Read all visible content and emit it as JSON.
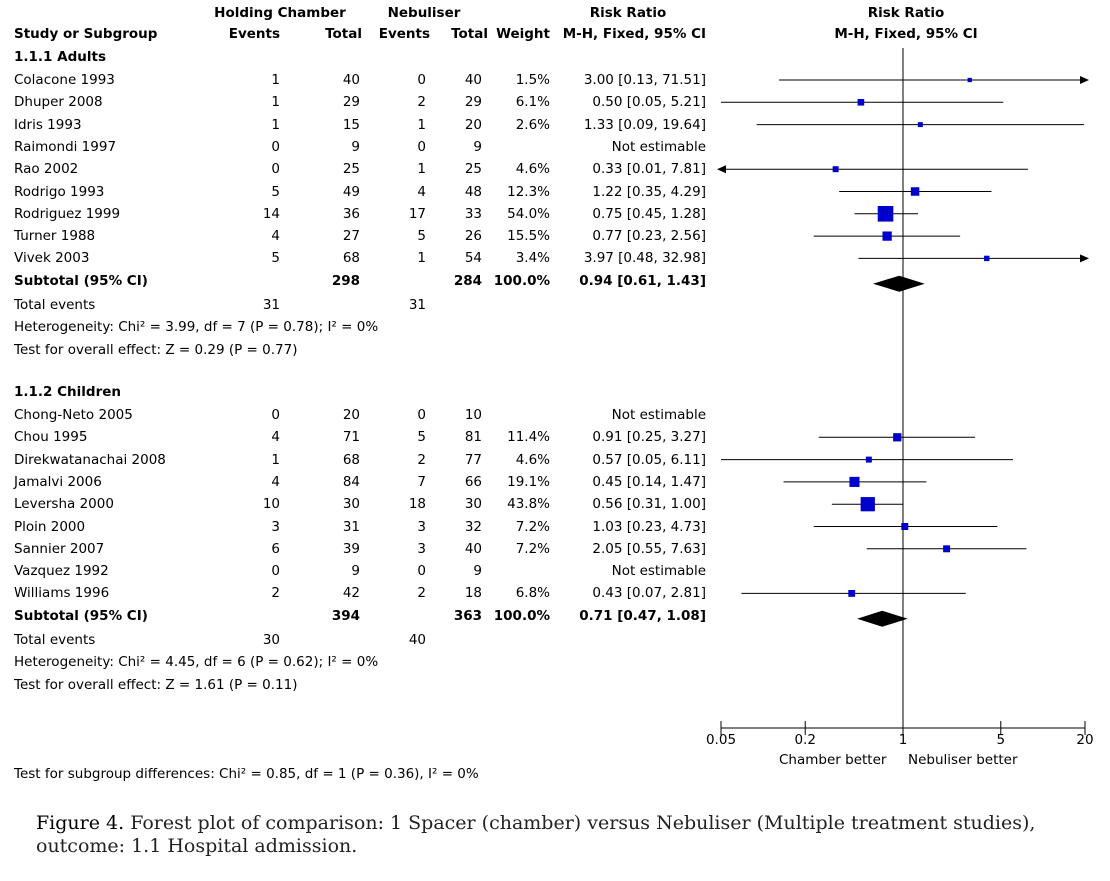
{
  "headers": {
    "group1": "Holding Chamber",
    "group2": "Nebuliser",
    "rr_table": "Risk Ratio",
    "rr_table_method": "M-H, Fixed, 95% CI",
    "rr_plot": "Risk Ratio",
    "rr_plot_method": "M-H, Fixed, 95% CI",
    "study": "Study or Subgroup",
    "events1": "Events",
    "total1": "Total",
    "events2": "Events",
    "total2": "Total",
    "weight": "Weight"
  },
  "chart_data": {
    "type": "forest",
    "x_scale": "log",
    "xlim": [
      0.05,
      20
    ],
    "ticks": [
      0.05,
      0.2,
      1,
      5,
      20
    ],
    "tick_labels": [
      "0.05",
      "0.2",
      "1",
      "5",
      "20"
    ],
    "null_value": 1,
    "x_label_left": "Chamber better",
    "x_label_right": "Nebuliser better",
    "subgroups": [
      {
        "title": "1.1.1 Adults",
        "studies": [
          {
            "name": "Colacone 1993",
            "e1": "1",
            "t1": "40",
            "e2": "0",
            "t2": "40",
            "weight": "1.5%",
            "rr_text": "3.00 [0.13, 71.51]",
            "rr": 3.0,
            "lo": 0.13,
            "hi": 71.51
          },
          {
            "name": "Dhuper 2008",
            "e1": "1",
            "t1": "29",
            "e2": "2",
            "t2": "29",
            "weight": "6.1%",
            "rr_text": "0.50 [0.05, 5.21]",
            "rr": 0.5,
            "lo": 0.05,
            "hi": 5.21
          },
          {
            "name": "Idris 1993",
            "e1": "1",
            "t1": "15",
            "e2": "1",
            "t2": "20",
            "weight": "2.6%",
            "rr_text": "1.33 [0.09, 19.64]",
            "rr": 1.33,
            "lo": 0.09,
            "hi": 19.64
          },
          {
            "name": "Raimondi 1997",
            "e1": "0",
            "t1": "9",
            "e2": "0",
            "t2": "9",
            "weight": "",
            "rr_text": "Not estimable",
            "rr": null,
            "lo": null,
            "hi": null
          },
          {
            "name": "Rao 2002",
            "e1": "0",
            "t1": "25",
            "e2": "1",
            "t2": "25",
            "weight": "4.6%",
            "rr_text": "0.33 [0.01, 7.81]",
            "rr": 0.33,
            "lo": 0.01,
            "hi": 7.81
          },
          {
            "name": "Rodrigo 1993",
            "e1": "5",
            "t1": "49",
            "e2": "4",
            "t2": "48",
            "weight": "12.3%",
            "rr_text": "1.22 [0.35, 4.29]",
            "rr": 1.22,
            "lo": 0.35,
            "hi": 4.29
          },
          {
            "name": "Rodriguez 1999",
            "e1": "14",
            "t1": "36",
            "e2": "17",
            "t2": "33",
            "weight": "54.0%",
            "rr_text": "0.75 [0.45, 1.28]",
            "rr": 0.75,
            "lo": 0.45,
            "hi": 1.28
          },
          {
            "name": "Turner 1988",
            "e1": "4",
            "t1": "27",
            "e2": "5",
            "t2": "26",
            "weight": "15.5%",
            "rr_text": "0.77 [0.23, 2.56]",
            "rr": 0.77,
            "lo": 0.23,
            "hi": 2.56
          },
          {
            "name": "Vivek 2003",
            "e1": "5",
            "t1": "68",
            "e2": "1",
            "t2": "54",
            "weight": "3.4%",
            "rr_text": "3.97 [0.48, 32.98]",
            "rr": 3.97,
            "lo": 0.48,
            "hi": 32.98
          }
        ],
        "subtotal": {
          "label": "Subtotal (95% CI)",
          "t1": "298",
          "t2": "284",
          "weight": "100.0%",
          "rr_text": "0.94 [0.61, 1.43]",
          "rr": 0.94,
          "lo": 0.61,
          "hi": 1.43
        },
        "total_events": {
          "label": "Total events",
          "e1": "31",
          "e2": "31"
        },
        "heterogeneity": "Heterogeneity: Chi² = 3.99, df = 7 (P = 0.78); I² = 0%",
        "overall_effect": "Test for overall effect: Z = 0.29 (P = 0.77)"
      },
      {
        "title": "1.1.2 Children",
        "studies": [
          {
            "name": "Chong-Neto 2005",
            "e1": "0",
            "t1": "20",
            "e2": "0",
            "t2": "10",
            "weight": "",
            "rr_text": "Not estimable",
            "rr": null,
            "lo": null,
            "hi": null
          },
          {
            "name": "Chou 1995",
            "e1": "4",
            "t1": "71",
            "e2": "5",
            "t2": "81",
            "weight": "11.4%",
            "rr_text": "0.91 [0.25, 3.27]",
            "rr": 0.91,
            "lo": 0.25,
            "hi": 3.27
          },
          {
            "name": "Direkwatanachai 2008",
            "e1": "1",
            "t1": "68",
            "e2": "2",
            "t2": "77",
            "weight": "4.6%",
            "rr_text": "0.57 [0.05, 6.11]",
            "rr": 0.57,
            "lo": 0.05,
            "hi": 6.11
          },
          {
            "name": "Jamalvi 2006",
            "e1": "4",
            "t1": "84",
            "e2": "7",
            "t2": "66",
            "weight": "19.1%",
            "rr_text": "0.45 [0.14, 1.47]",
            "rr": 0.45,
            "lo": 0.14,
            "hi": 1.47
          },
          {
            "name": "Leversha 2000",
            "e1": "10",
            "t1": "30",
            "e2": "18",
            "t2": "30",
            "weight": "43.8%",
            "rr_text": "0.56 [0.31, 1.00]",
            "rr": 0.56,
            "lo": 0.31,
            "hi": 1.0
          },
          {
            "name": "Ploin 2000",
            "e1": "3",
            "t1": "31",
            "e2": "3",
            "t2": "32",
            "weight": "7.2%",
            "rr_text": "1.03 [0.23, 4.73]",
            "rr": 1.03,
            "lo": 0.23,
            "hi": 4.73
          },
          {
            "name": "Sannier 2007",
            "e1": "6",
            "t1": "39",
            "e2": "3",
            "t2": "40",
            "weight": "7.2%",
            "rr_text": "2.05 [0.55, 7.63]",
            "rr": 2.05,
            "lo": 0.55,
            "hi": 7.63
          },
          {
            "name": "Vazquez 1992",
            "e1": "0",
            "t1": "9",
            "e2": "0",
            "t2": "9",
            "weight": "",
            "rr_text": "Not estimable",
            "rr": null,
            "lo": null,
            "hi": null
          },
          {
            "name": "Williams 1996",
            "e1": "2",
            "t1": "42",
            "e2": "2",
            "t2": "18",
            "weight": "6.8%",
            "rr_text": "0.43 [0.07, 2.81]",
            "rr": 0.43,
            "lo": 0.07,
            "hi": 2.81
          }
        ],
        "subtotal": {
          "label": "Subtotal (95% CI)",
          "t1": "394",
          "t2": "363",
          "weight": "100.0%",
          "rr_text": "0.71 [0.47, 1.08]",
          "rr": 0.71,
          "lo": 0.47,
          "hi": 1.08
        },
        "total_events": {
          "label": "Total events",
          "e1": "30",
          "e2": "40"
        },
        "heterogeneity": "Heterogeneity: Chi² = 4.45, df = 6 (P = 0.62); I² = 0%",
        "overall_effect": "Test for overall effect: Z = 1.61 (P = 0.11)"
      }
    ]
  },
  "subgroup_differences": "Test for subgroup differences: Chi² = 0.85, df = 1 (P = 0.36), I² = 0%",
  "caption": {
    "label": "Figure 4.",
    "text": "Forest plot of comparison: 1 Spacer (chamber) versus Nebuliser (Multiple treatment studies), outcome: 1.1 Hospital admission."
  }
}
